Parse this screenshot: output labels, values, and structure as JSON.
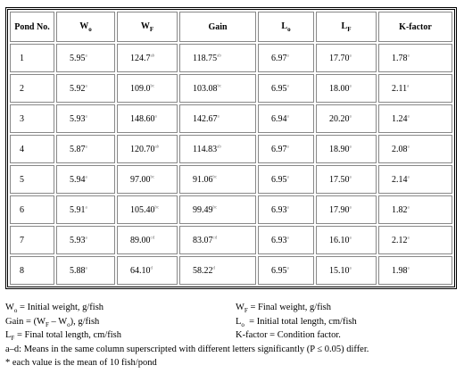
{
  "table": {
    "header": [
      {
        "base": "Pond No."
      },
      {
        "base": "W",
        "sub": "o"
      },
      {
        "base": "W",
        "sub": "F"
      },
      {
        "base": "Gain"
      },
      {
        "base": "L",
        "sub": "o"
      },
      {
        "base": "L",
        "sub": "F"
      },
      {
        "base": "K-factor"
      }
    ],
    "rows": [
      [
        "1",
        {
          "v": "5.95",
          "sup": "a"
        },
        {
          "v": "124.7",
          "sup": "ab"
        },
        {
          "v": "118.75",
          "sup": "ab"
        },
        {
          "v": "6.97",
          "sup": "a"
        },
        {
          "v": "17.70",
          "sup": "a"
        },
        {
          "v": "1.78",
          "sup": "a"
        }
      ],
      [
        "2",
        {
          "v": "5.92",
          "sup": "a"
        },
        {
          "v": "109.0",
          "sup": "bc"
        },
        {
          "v": "103.08",
          "sup": "bc"
        },
        {
          "v": "6.95",
          "sup": "a"
        },
        {
          "v": "18.00",
          "sup": "a"
        },
        {
          "v": "2.11",
          "sup": "a"
        }
      ],
      [
        "3",
        {
          "v": "5.93",
          "sup": "a"
        },
        {
          "v": "148.60",
          "sup": "a"
        },
        {
          "v": "142.67",
          "sup": "a"
        },
        {
          "v": "6.94",
          "sup": "a"
        },
        {
          "v": "20.20",
          "sup": "a"
        },
        {
          "v": "1.24",
          "sup": "a"
        }
      ],
      [
        "4",
        {
          "v": "5.87",
          "sup": "a"
        },
        {
          "v": "120.70",
          "sup": "ab"
        },
        {
          "v": "114.83",
          "sup": "ab"
        },
        {
          "v": "6.97",
          "sup": "a"
        },
        {
          "v": "18.90",
          "sup": "a"
        },
        {
          "v": "2.08",
          "sup": "a"
        }
      ],
      [
        "5",
        {
          "v": "5.94",
          "sup": "a"
        },
        {
          "v": "97.00",
          "sup": "bc"
        },
        {
          "v": "91.06",
          "sup": "bc"
        },
        {
          "v": "6.95",
          "sup": "a"
        },
        {
          "v": "17.50",
          "sup": "a"
        },
        {
          "v": "2.14",
          "sup": "a"
        }
      ],
      [
        "6",
        {
          "v": "5.91",
          "sup": "a"
        },
        {
          "v": "105.40",
          "sup": "bc"
        },
        {
          "v": "99.49",
          "sup": "bc"
        },
        {
          "v": "6.93",
          "sup": "a"
        },
        {
          "v": "17.90",
          "sup": "a"
        },
        {
          "v": "1.82",
          "sup": "a"
        }
      ],
      [
        "7",
        {
          "v": "5.93",
          "sup": "a"
        },
        {
          "v": "89.00",
          "sup": "cd"
        },
        {
          "v": "83.07",
          "sup": "cd"
        },
        {
          "v": "6.93",
          "sup": "a"
        },
        {
          "v": "16.10",
          "sup": "a"
        },
        {
          "v": "2.12",
          "sup": "a"
        }
      ],
      [
        "8",
        {
          "v": "5.88",
          "sup": "a"
        },
        {
          "v": "64.10",
          "sup": "d"
        },
        {
          "v": "58.22",
          "sup": "d"
        },
        {
          "v": "6.95",
          "sup": "a"
        },
        {
          "v": "15.10",
          "sup": "a"
        },
        {
          "v": "1.98",
          "sup": "a"
        }
      ]
    ]
  },
  "footnotes": [
    [
      [
        "W",
        {
          "sub": "o"
        },
        " = Initial weight, g/fish"
      ],
      [
        "W",
        {
          "sub": "F"
        },
        " = Final weight, g/fish"
      ]
    ],
    [
      [
        "Gain = (W",
        {
          "sub": "F"
        },
        " – W",
        {
          "sub": "o"
        },
        "), g/fish"
      ],
      [
        "L",
        {
          "sub": "o"
        },
        "  = Initial total length, cm/fish"
      ]
    ],
    [
      [
        "L",
        {
          "sub": "F"
        },
        " = Final total length, cm/fish"
      ],
      [
        "K-factor = Condition factor."
      ]
    ],
    [
      [
        "a–d: Means in the same column superscripted with different letters significantly (P ≤ 0.05) differ."
      ]
    ],
    [
      [
        "* each value is the mean of 10 fish/pond"
      ]
    ]
  ]
}
